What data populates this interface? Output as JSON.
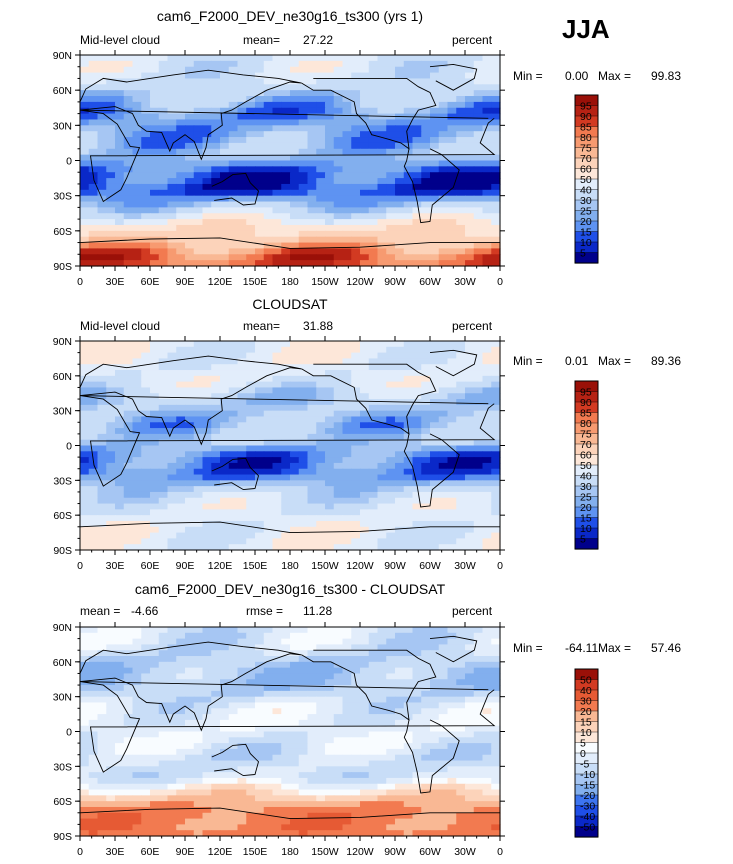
{
  "season": "JJA",
  "colors": {
    "cloud": [
      "#00008b",
      "#0a28c8",
      "#1f4fe8",
      "#3d75f0",
      "#5e93f2",
      "#82afee",
      "#a6c6f3",
      "#c8ddf7",
      "#e2edfb",
      "#f8fcff",
      "#fde7d9",
      "#fcd3ba",
      "#f9b894",
      "#f79a70",
      "#f27a50",
      "#e65a34",
      "#d23a22",
      "#b62214",
      "#9a1008"
    ],
    "diff": [
      "#00008b",
      "#0a28c8",
      "#1f4fe8",
      "#3d75f0",
      "#5e93f2",
      "#82afee",
      "#a6c6f3",
      "#c8ddf7",
      "#e2edfb",
      "#f8fcff",
      "#fde7d9",
      "#fcd3ba",
      "#f9b894",
      "#f79a70",
      "#f27a50",
      "#e65a34",
      "#d23a22",
      "#9a1008"
    ]
  },
  "chart_data": [
    {
      "type": "heatmap",
      "title": "cam6_F2000_DEV_ne30g16_ts300 (yrs 1)",
      "left_label": "Mid-level cloud",
      "stat_label": "mean=",
      "stat_value": "27.22",
      "units": "percent",
      "min_label": "Min =",
      "min_value": "0.00",
      "max_label": "Max =",
      "max_value": "99.83",
      "x_ticks": [
        "0",
        "30E",
        "60E",
        "90E",
        "120E",
        "150E",
        "180",
        "150W",
        "120W",
        "90W",
        "60W",
        "30W",
        "0"
      ],
      "y_ticks": [
        "90N",
        "60N",
        "30N",
        "0",
        "30S",
        "60S",
        "90S"
      ],
      "colorbar_levels": [
        "95",
        "90",
        "85",
        "80",
        "75",
        "70",
        "60",
        "50",
        "40",
        "30",
        "25",
        "20",
        "15",
        "10",
        "5"
      ],
      "zonal_mean": [
        {
          "lat": 75,
          "value": 40
        },
        {
          "lat": 55,
          "value": 30
        },
        {
          "lat": 40,
          "value": 18
        },
        {
          "lat": 20,
          "value": 22
        },
        {
          "lat": 5,
          "value": 28
        },
        {
          "lat": -10,
          "value": 12
        },
        {
          "lat": -25,
          "value": 8
        },
        {
          "lat": -40,
          "value": 30
        },
        {
          "lat": -55,
          "value": 55
        },
        {
          "lat": -70,
          "value": 70
        },
        {
          "lat": -80,
          "value": 85
        }
      ]
    },
    {
      "type": "heatmap",
      "title": "CLOUDSAT",
      "left_label": "Mid-level cloud",
      "stat_label": "mean=",
      "stat_value": "31.88",
      "units": "percent",
      "min_label": "Min =",
      "min_value": "0.01",
      "max_label": "Max =",
      "max_value": "89.36",
      "x_ticks": [
        "0",
        "30E",
        "60E",
        "90E",
        "120E",
        "150E",
        "180",
        "150W",
        "120W",
        "90W",
        "60W",
        "30W",
        "0"
      ],
      "y_ticks": [
        "90N",
        "60N",
        "30N",
        "0",
        "30S",
        "60S",
        "90S"
      ],
      "colorbar_levels": [
        "95",
        "90",
        "85",
        "80",
        "75",
        "70",
        "60",
        "50",
        "40",
        "30",
        "25",
        "20",
        "15",
        "10",
        "5"
      ],
      "zonal_mean": [
        {
          "lat": 75,
          "value": 45
        },
        {
          "lat": 55,
          "value": 42
        },
        {
          "lat": 40,
          "value": 30
        },
        {
          "lat": 20,
          "value": 25
        },
        {
          "lat": 5,
          "value": 30
        },
        {
          "lat": -10,
          "value": 15
        },
        {
          "lat": -25,
          "value": 15
        },
        {
          "lat": -40,
          "value": 35
        },
        {
          "lat": -55,
          "value": 42
        },
        {
          "lat": -70,
          "value": 45
        }
      ]
    },
    {
      "type": "heatmap",
      "title": "cam6_F2000_DEV_ne30g16_ts300 - CLOUDSAT",
      "left_label": "",
      "stat_label": "mean =",
      "stat_value": "-4.66",
      "stat2_label": "rmse =",
      "stat2_value": "11.28",
      "units": "percent",
      "min_label": "Min =",
      "min_value": "-64.11",
      "max_label": "Max =",
      "max_value": "57.46",
      "x_ticks": [
        "0",
        "30E",
        "60E",
        "90E",
        "120E",
        "150E",
        "180",
        "150W",
        "120W",
        "90W",
        "60W",
        "30W",
        "0"
      ],
      "y_ticks": [
        "90N",
        "60N",
        "30N",
        "0",
        "30S",
        "60S",
        "90S"
      ],
      "colorbar_levels": [
        "50",
        "40",
        "30",
        "20",
        "15",
        "10",
        "5",
        "0",
        "-5",
        "-10",
        "-15",
        "-20",
        "-30",
        "-40",
        "-50"
      ],
      "zonal_mean": [
        {
          "lat": 75,
          "value": -5
        },
        {
          "lat": 55,
          "value": -12
        },
        {
          "lat": 40,
          "value": -12
        },
        {
          "lat": 20,
          "value": -3
        },
        {
          "lat": 5,
          "value": -2
        },
        {
          "lat": -10,
          "value": -3
        },
        {
          "lat": -25,
          "value": -7
        },
        {
          "lat": -40,
          "value": -5
        },
        {
          "lat": -55,
          "value": 12
        },
        {
          "lat": -70,
          "value": 25
        }
      ]
    }
  ]
}
